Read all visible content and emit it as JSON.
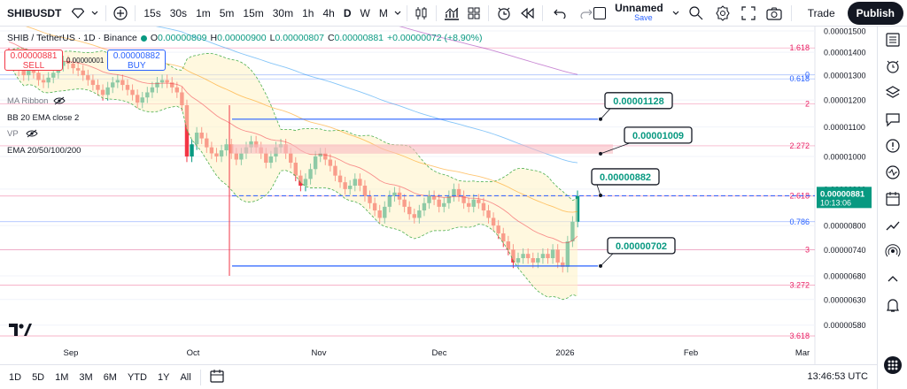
{
  "toolbar": {
    "symbol": "SHIBUSDT",
    "intervals": [
      "15s",
      "30s",
      "1m",
      "5m",
      "15m",
      "30m",
      "1h",
      "4h",
      "D",
      "W",
      "M"
    ],
    "active_interval": "D",
    "layout_name": "Unnamed",
    "layout_status": "Save",
    "trade_label": "Trade",
    "publish_label": "Publish"
  },
  "legend": {
    "title": "SHIB / TetherUS · 1D · Binance",
    "open_label": "O",
    "open": "0.00000809",
    "high_label": "H",
    "high": "0.00000900",
    "low_label": "L",
    "low": "0.00000807",
    "close_label": "C",
    "close": "0.00000881",
    "change": "+0.00000072 (+8.90%)"
  },
  "trade_buttons": {
    "sell_price": "0.00000881",
    "sell_label": "SELL",
    "spread": "0.00000001",
    "buy_price": "0.00000882",
    "buy_label": "BUY"
  },
  "indicators": [
    "MA Ribbon",
    "BB 20 EMA close 2",
    "VP",
    "EMA 20/50/100/200"
  ],
  "bottom": {
    "ranges": [
      "1D",
      "5D",
      "1M",
      "3M",
      "6M",
      "YTD",
      "1Y",
      "All"
    ],
    "time": "13:46:53 UTC"
  },
  "chart_data": {
    "type": "candlestick",
    "x_ticks": [
      "Sep",
      "Oct",
      "Nov",
      "Dec",
      "2026",
      "Feb",
      "Mar"
    ],
    "y_ticks": [
      "0.00001500",
      "0.00001400",
      "0.00001300",
      "0.00001200",
      "0.00001100",
      "0.00001000",
      "0.00000900",
      "0.00000800",
      "0.00000740",
      "0.00000680",
      "0.00000630",
      "0.00000580"
    ],
    "y_scale": "log",
    "current_price": "0.00000881",
    "countdown": "10:13:06",
    "fib_levels": [
      {
        "label": "1.618",
        "price": 1.42e-05
      },
      {
        "label": "0",
        "price": 1.302e-05
      },
      {
        "label": "0.618",
        "price": 1.285e-05
      },
      {
        "label": "2",
        "price": 1.185e-05
      },
      {
        "label": "2.272",
        "price": 1.035e-05
      },
      {
        "label": "2.618",
        "price": 8.8e-06
      },
      {
        "label": "0.786",
        "price": 8.1e-06
      },
      {
        "label": "3",
        "price": 7.4e-06
      },
      {
        "label": "3.272",
        "price": 6.6e-06
      },
      {
        "label": "3.618",
        "price": 5.6e-06
      }
    ],
    "annotations": [
      {
        "text": "0.00001128",
        "price": 1.128e-05
      },
      {
        "text": "0.00001009",
        "price": 1.009e-05
      },
      {
        "text": "0.00000882",
        "price": 8.82e-06
      },
      {
        "text": "0.00000702",
        "price": 7.02e-06
      }
    ],
    "resistance_zone": [
      1.009e-05,
      1.04e-05
    ],
    "close_series": [
      1.38e-05,
      1.35e-05,
      1.32e-05,
      1.3e-05,
      1.33e-05,
      1.31e-05,
      1.28e-05,
      1.27e-05,
      1.29e-05,
      1.31e-05,
      1.34e-05,
      1.36e-05,
      1.35e-05,
      1.33e-05,
      1.32e-05,
      1.3e-05,
      1.28e-05,
      1.26e-05,
      1.24e-05,
      1.22e-05,
      1.25e-05,
      1.27e-05,
      1.28e-05,
      1.26e-05,
      1.24e-05,
      1.22e-05,
      1.19e-05,
      1.21e-05,
      1.23e-05,
      1.25e-05,
      1.27e-05,
      1.28e-05,
      1.27e-05,
      1.25e-05,
      1.23e-05,
      1.18e-05,
      1e-05,
      1.04e-05,
      1.08e-05,
      1.06e-05,
      1.03e-05,
      1.01e-05,
      1e-05,
      1.02e-05,
      1.04e-05,
      1.01e-05,
      9.9e-06,
      1.01e-05,
      1.03e-05,
      1.05e-05,
      1.03e-05,
      1.01e-05,
      9.8e-06,
      1e-05,
      1.03e-05,
      1.04e-05,
      1.01e-05,
      9.8e-06,
      9.4e-06,
      9.1e-06,
      9.3e-06,
      9.6e-06,
      1e-05,
      1.01e-05,
      9.9e-06,
      9.7e-06,
      9.4e-06,
      9.2e-06,
      9e-06,
      9.1e-06,
      9.3e-06,
      9.1e-06,
      8.8e-06,
      8.6e-06,
      8.4e-06,
      8.2e-06,
      8.5e-06,
      8.8e-06,
      8.9e-06,
      8.7e-06,
      8.5e-06,
      8.3e-06,
      8.2e-06,
      8.4e-06,
      8.6e-06,
      8.8e-06,
      8.7e-06,
      8.5e-06,
      8.6e-06,
      8.8e-06,
      9e-06,
      8.8e-06,
      8.6e-06,
      8.5e-06,
      8.7e-06,
      8.6e-06,
      8.4e-06,
      8.2e-06,
      8e-06,
      7.8e-06,
      7.6e-06,
      7.4e-06,
      7.1e-06,
      7.2e-06,
      7.3e-06,
      7.2e-06,
      7.1e-06,
      7.2e-06,
      7.3e-06,
      7.2e-06,
      7.4e-06,
      7.1e-06,
      7e-06,
      7.6e-06,
      8.1e-06,
      8.8e-06
    ]
  },
  "colors": {
    "up": "#089981",
    "down": "#f23645",
    "blue": "#2962ff",
    "fib": "#e91e63",
    "fib_blue": "#2962ff"
  }
}
